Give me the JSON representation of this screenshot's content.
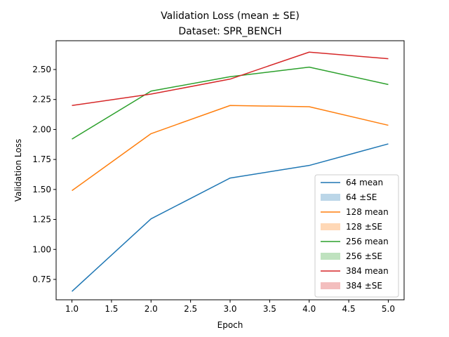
{
  "chart_data": {
    "type": "line",
    "title": "Validation Loss (mean ± SE)",
    "subtitle": "Dataset: SPR_BENCH",
    "xlabel": "Epoch",
    "ylabel": "Validation Loss",
    "x": [
      1,
      2,
      3,
      4,
      5
    ],
    "xlim": [
      0.8,
      5.2
    ],
    "ylim": [
      0.58,
      2.74
    ],
    "xticks": [
      "1.0",
      "1.5",
      "2.0",
      "2.5",
      "3.0",
      "3.5",
      "4.0",
      "4.5",
      "5.0"
    ],
    "yticks": [
      "0.75",
      "1.00",
      "1.25",
      "1.50",
      "1.75",
      "2.00",
      "2.25",
      "2.50"
    ],
    "grid": false,
    "legend_position": "lower-right",
    "series": [
      {
        "name": "64 mean",
        "band_label": "64 ±SE",
        "color": "#1f77b4",
        "values": [
          0.65,
          1.255,
          1.595,
          1.7,
          1.88
        ]
      },
      {
        "name": "128 mean",
        "band_label": "128 ±SE",
        "color": "#ff7f0e",
        "values": [
          1.49,
          1.965,
          2.2,
          2.19,
          2.035
        ]
      },
      {
        "name": "256 mean",
        "band_label": "256 ±SE",
        "color": "#2ca02c",
        "values": [
          1.92,
          2.32,
          2.44,
          2.52,
          2.375
        ]
      },
      {
        "name": "384 mean",
        "band_label": "384 ±SE",
        "color": "#d62728",
        "values": [
          2.2,
          2.295,
          2.42,
          2.645,
          2.59
        ]
      }
    ]
  }
}
